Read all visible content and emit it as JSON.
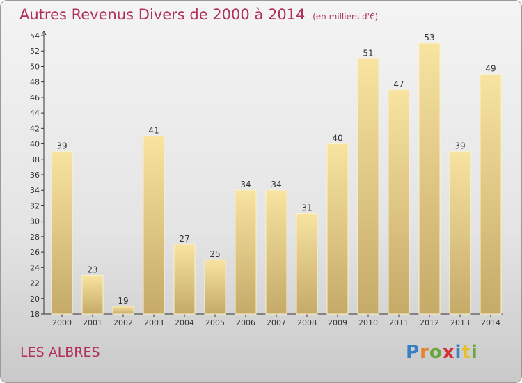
{
  "title": "Autres Revenus Divers de 2000 à 2014",
  "title_unit": "(en milliers d'€)",
  "location": "LES ALBRES",
  "logo": "Proxiti",
  "colors": {
    "title": "#b0305c",
    "bar_light": "#f7e09b",
    "bar_dark": "#c4a866"
  },
  "chart_data": {
    "type": "bar",
    "categories": [
      "2000",
      "2001",
      "2002",
      "2003",
      "2004",
      "2005",
      "2006",
      "2007",
      "2008",
      "2009",
      "2010",
      "2011",
      "2012",
      "2013",
      "2014"
    ],
    "values": [
      39,
      23,
      19,
      41,
      27,
      25,
      34,
      34,
      31,
      40,
      51,
      47,
      53,
      39,
      49
    ],
    "ylim": [
      18,
      54
    ],
    "yticks": [
      18,
      20,
      22,
      24,
      26,
      28,
      30,
      32,
      34,
      36,
      38,
      40,
      42,
      44,
      46,
      48,
      50,
      52,
      54
    ],
    "grid": false,
    "data_labels": true
  }
}
